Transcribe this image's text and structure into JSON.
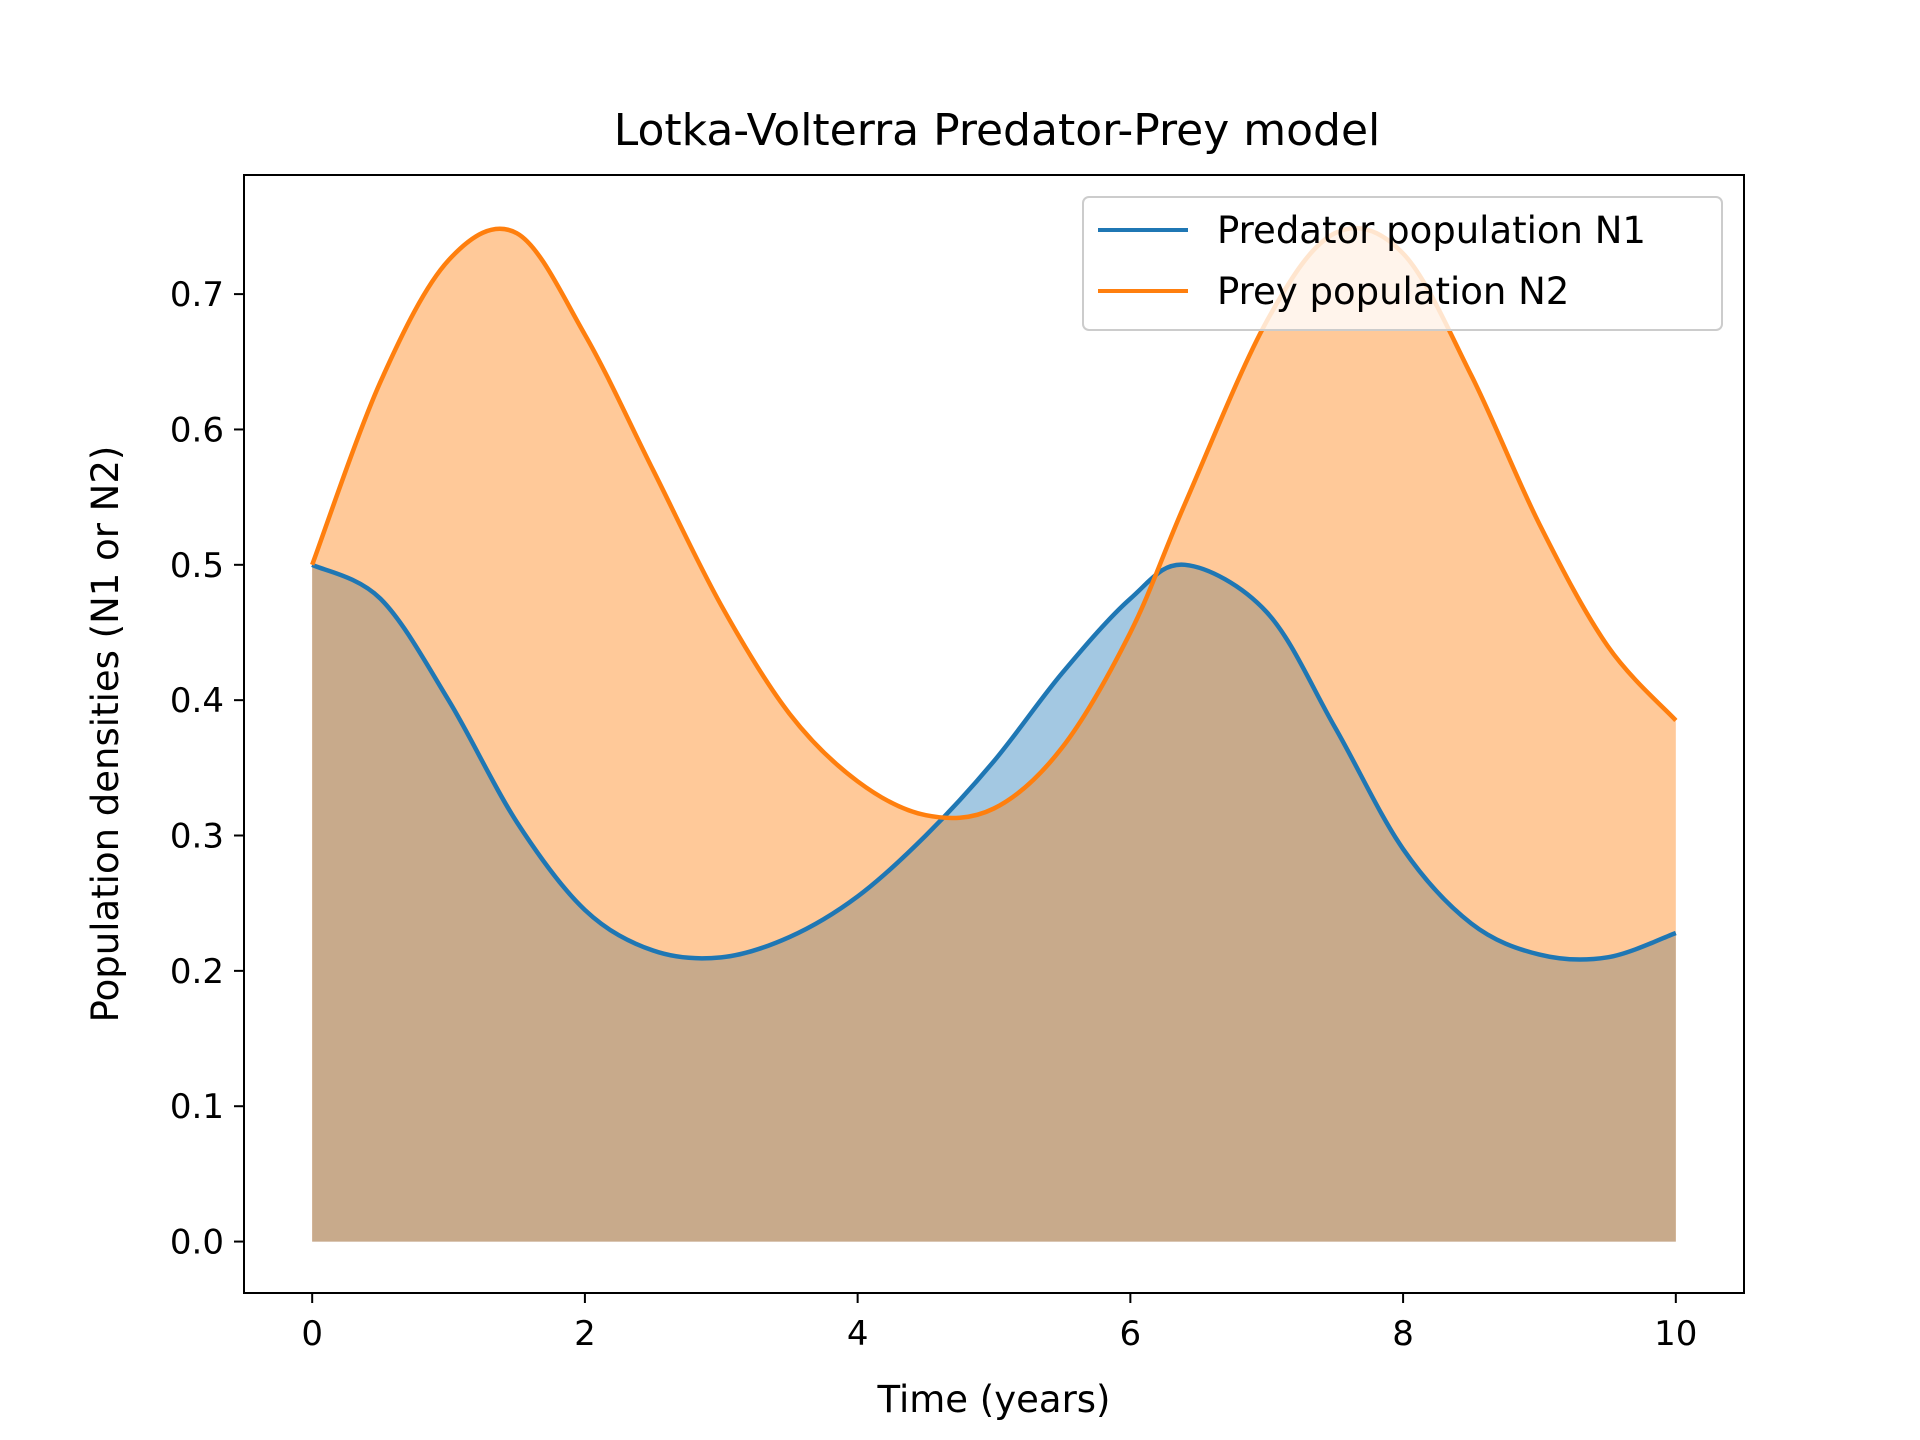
{
  "chart_data": {
    "type": "area",
    "title": "Lotka-Volterra Predator-Prey model",
    "xlabel": "Time (years)",
    "ylabel": "Population densities (N1 or N2)",
    "xlim": [
      -0.5,
      10.5
    ],
    "ylim": [
      -0.038,
      0.788
    ],
    "x_ticks": [
      0,
      2,
      4,
      6,
      8,
      10
    ],
    "y_ticks": [
      0.0,
      0.1,
      0.2,
      0.3,
      0.4,
      0.5,
      0.6,
      0.7
    ],
    "x_tick_labels": [
      "0",
      "2",
      "4",
      "6",
      "8",
      "10"
    ],
    "y_tick_labels": [
      "0.0",
      "0.1",
      "0.2",
      "0.3",
      "0.4",
      "0.5",
      "0.6",
      "0.7"
    ],
    "grid": false,
    "legend_position": "top-right",
    "fill_to_zero": true,
    "x": [
      0,
      0.5,
      1.0,
      1.5,
      2.0,
      2.5,
      3.0,
      3.5,
      4.0,
      4.5,
      5.0,
      5.5,
      6.0,
      6.4,
      7.0,
      7.5,
      8.0,
      8.5,
      9.0,
      9.5,
      10.0
    ],
    "series": [
      {
        "name": "Predator population N1",
        "color": "#1f77b4",
        "fill_color": "#a3c8e2",
        "values": [
          0.5,
          0.475,
          0.4,
          0.31,
          0.245,
          0.215,
          0.21,
          0.225,
          0.255,
          0.3,
          0.355,
          0.42,
          0.475,
          0.5,
          0.465,
          0.38,
          0.29,
          0.235,
          0.212,
          0.21,
          0.228
        ]
      },
      {
        "name": "Prey population N2",
        "color": "#ff7f0e",
        "fill_color": "#ffc999",
        "values": [
          0.5,
          0.635,
          0.725,
          0.745,
          0.67,
          0.57,
          0.47,
          0.39,
          0.34,
          0.315,
          0.32,
          0.365,
          0.45,
          0.545,
          0.68,
          0.745,
          0.73,
          0.64,
          0.53,
          0.44,
          0.385
        ]
      }
    ],
    "overlap_color": "#c8aa8b"
  }
}
